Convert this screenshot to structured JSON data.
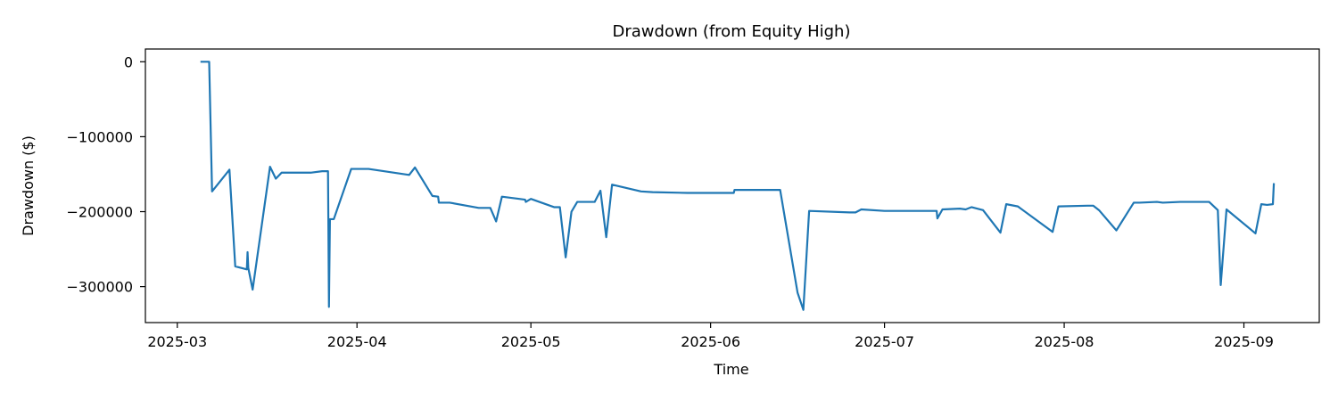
{
  "chart_data": {
    "type": "line",
    "title": "Drawdown (from Equity High)",
    "xlabel": "Time",
    "ylabel": "Drawdown ($)",
    "grid": false,
    "legend": "none",
    "xlim": [
      "2025-02-23T12:00",
      "2025-09-14T00:00"
    ],
    "ylim": [
      -348000,
      17000
    ],
    "x_ticks": [
      {
        "date": "2025-03-01",
        "label": "2025-03"
      },
      {
        "date": "2025-04-01",
        "label": "2025-04"
      },
      {
        "date": "2025-05-01",
        "label": "2025-05"
      },
      {
        "date": "2025-06-01",
        "label": "2025-06"
      },
      {
        "date": "2025-07-01",
        "label": "2025-07"
      },
      {
        "date": "2025-08-01",
        "label": "2025-08"
      },
      {
        "date": "2025-09-01",
        "label": "2025-09"
      }
    ],
    "y_ticks": [
      {
        "value": 0,
        "label": "0"
      },
      {
        "value": -100000,
        "label": "−100000"
      },
      {
        "value": -200000,
        "label": "−200000"
      },
      {
        "value": -300000,
        "label": "−300000"
      }
    ],
    "series": [
      {
        "color": "#1f77b4",
        "x": [
          "2025-03-05T00:00",
          "2025-03-06T00:00",
          "2025-03-06T12:00",
          "2025-03-07T00:00",
          "2025-03-10T00:00",
          "2025-03-11T00:00",
          "2025-03-13T00:00",
          "2025-03-13T03:00",
          "2025-03-13T06:00",
          "2025-03-14T00:00",
          "2025-03-17T00:00",
          "2025-03-18T00:00",
          "2025-03-19T00:00",
          "2025-03-24T00:00",
          "2025-03-26T00:00",
          "2025-03-27T00:00",
          "2025-03-27T04:00",
          "2025-03-27T08:00",
          "2025-03-28T00:00",
          "2025-03-31T00:00",
          "2025-04-03T00:00",
          "2025-04-10T00:00",
          "2025-04-11T00:00",
          "2025-04-14T00:00",
          "2025-04-15T00:00",
          "2025-04-15T03:00",
          "2025-04-17T00:00",
          "2025-04-22T00:00",
          "2025-04-24T00:00",
          "2025-04-25T00:00",
          "2025-04-26T00:00",
          "2025-04-29T00:00",
          "2025-04-30T00:00",
          "2025-04-30T03:00",
          "2025-05-01T00:00",
          "2025-05-05T00:00",
          "2025-05-06T00:00",
          "2025-05-07T00:00",
          "2025-05-08T00:00",
          "2025-05-09T00:00",
          "2025-05-12T00:00",
          "2025-05-13T00:00",
          "2025-05-14T00:00",
          "2025-05-15T00:00",
          "2025-05-20T00:00",
          "2025-05-22T00:00",
          "2025-05-28T00:00",
          "2025-06-05T00:00",
          "2025-06-05T03:00",
          "2025-06-13T00:00",
          "2025-06-16T00:00",
          "2025-06-17T00:00",
          "2025-06-18T00:00",
          "2025-06-25T00:00",
          "2025-06-26T00:00",
          "2025-06-27T00:00",
          "2025-07-01T00:00",
          "2025-07-10T00:00",
          "2025-07-10T03:00",
          "2025-07-11T00:00",
          "2025-07-14T00:00",
          "2025-07-15T00:00",
          "2025-07-16T00:00",
          "2025-07-18T00:00",
          "2025-07-21T00:00",
          "2025-07-22T00:00",
          "2025-07-24T00:00",
          "2025-07-30T00:00",
          "2025-07-31T00:00",
          "2025-08-05T00:00",
          "2025-08-06T00:00",
          "2025-08-07T00:00",
          "2025-08-10T00:00",
          "2025-08-13T00:00",
          "2025-08-14T00:00",
          "2025-08-17T00:00",
          "2025-08-18T00:00",
          "2025-08-21T00:00",
          "2025-08-26T00:00",
          "2025-08-27T12:00",
          "2025-08-28T00:00",
          "2025-08-29T00:00",
          "2025-09-03T00:00",
          "2025-09-04T00:00",
          "2025-09-05T00:00",
          "2025-09-06T00:00",
          "2025-09-06T04:00"
        ],
        "y": [
          0,
          0,
          0,
          -173000,
          -144000,
          -273000,
          -277000,
          -254000,
          -275000,
          -304000,
          -140000,
          -156000,
          -148000,
          -148000,
          -146000,
          -146000,
          -327000,
          -210000,
          -210000,
          -143000,
          -143000,
          -151000,
          -141000,
          -179000,
          -180000,
          -188000,
          -188000,
          -195000,
          -195000,
          -213000,
          -180000,
          -183000,
          -184000,
          -187000,
          -183000,
          -194000,
          -194000,
          -261000,
          -200000,
          -187000,
          -187000,
          -172000,
          -234000,
          -164000,
          -173000,
          -174000,
          -175000,
          -175000,
          -171000,
          -171000,
          -308000,
          -331000,
          -199000,
          -201000,
          -201000,
          -197000,
          -199000,
          -199000,
          -209000,
          -197000,
          -196000,
          -197000,
          -194000,
          -198000,
          -228000,
          -190000,
          -193000,
          -227000,
          -193000,
          -192000,
          -192000,
          -198000,
          -225000,
          -188000,
          -188000,
          -187000,
          -188000,
          -187000,
          -187000,
          -198000,
          -298000,
          -197000,
          -229000,
          -190000,
          -191000,
          -190000,
          -162000
        ]
      }
    ]
  }
}
